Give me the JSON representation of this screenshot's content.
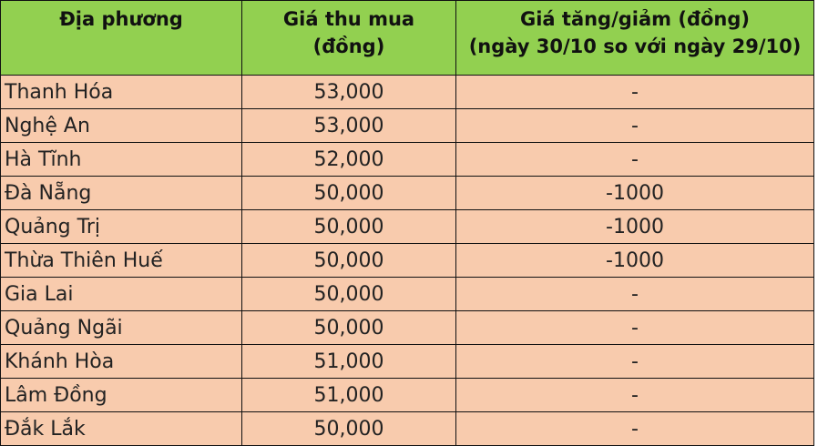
{
  "table": {
    "headers": [
      {
        "line1": "Địa phương",
        "line2": ""
      },
      {
        "line1": "Giá thu mua",
        "line2": "(đồng)"
      },
      {
        "line1": "Giá tăng/giảm (đồng)",
        "line2": "(ngày 30/10 so với ngày 29/10)"
      }
    ],
    "rows": [
      {
        "region": "Thanh Hóa",
        "price": "53,000",
        "change": "-"
      },
      {
        "region": "Nghệ An",
        "price": "53,000",
        "change": "-"
      },
      {
        "region": "Hà Tĩnh",
        "price": "52,000",
        "change": "-"
      },
      {
        "region": "Đà Nẵng",
        "price": "50,000",
        "change": "-1000"
      },
      {
        "region": "Quảng Trị",
        "price": "50,000",
        "change": "-1000"
      },
      {
        "region": "Thừa Thiên Huế",
        "price": "50,000",
        "change": "-1000"
      },
      {
        "region": "Gia Lai",
        "price": "50,000",
        "change": "-"
      },
      {
        "region": "Quảng Ngãi",
        "price": "50,000",
        "change": "-"
      },
      {
        "region": "Khánh Hòa",
        "price": "51,000",
        "change": "-"
      },
      {
        "region": "Lâm Đồng",
        "price": "51,000",
        "change": "-"
      },
      {
        "region": "Đắk Lắk",
        "price": "50,000",
        "change": "-"
      }
    ]
  },
  "colors": {
    "header_bg": "#92d050",
    "body_bg": "#f8cbad"
  }
}
